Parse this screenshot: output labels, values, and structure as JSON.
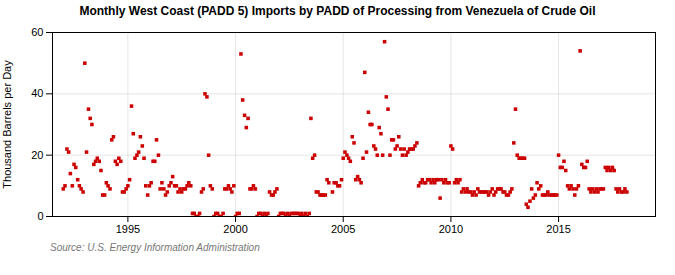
{
  "chart_data": {
    "type": "scatter",
    "title": "Monthly West Coast (PADD 5) Imports by PADD of Processing from Venezuela of Crude Oil",
    "ylabel": "Thousand Barrels per Day",
    "source": "Source: U.S. Energy Information Administration",
    "color": "#cc0000",
    "marker": "square",
    "grid": true,
    "xlim": [
      1991.5,
      2019.5
    ],
    "xticks": [
      1995,
      2000,
      2005,
      2010,
      2015
    ],
    "ylim": [
      0,
      60
    ],
    "yticks": [
      0,
      20,
      40,
      60
    ],
    "x": [
      1992.0,
      1992.08,
      1992.17,
      1992.25,
      1992.33,
      1992.42,
      1992.5,
      1992.58,
      1992.67,
      1992.75,
      1992.83,
      1992.92,
      1993.0,
      1993.08,
      1993.17,
      1993.25,
      1993.33,
      1993.42,
      1993.5,
      1993.58,
      1993.67,
      1993.75,
      1993.83,
      1993.92,
      1994.0,
      1994.08,
      1994.17,
      1994.25,
      1994.33,
      1994.42,
      1994.5,
      1994.58,
      1994.67,
      1994.75,
      1994.83,
      1994.92,
      1995.0,
      1995.08,
      1995.17,
      1995.25,
      1995.33,
      1995.42,
      1995.5,
      1995.58,
      1995.67,
      1995.75,
      1995.83,
      1995.92,
      1996.0,
      1996.08,
      1996.17,
      1996.25,
      1996.33,
      1996.42,
      1996.5,
      1996.58,
      1996.67,
      1996.75,
      1996.83,
      1996.92,
      1997.0,
      1997.08,
      1997.17,
      1997.25,
      1997.33,
      1997.42,
      1997.5,
      1997.58,
      1997.67,
      1997.75,
      1997.83,
      1997.92,
      1998.0,
      1998.08,
      1998.17,
      1998.25,
      1998.33,
      1998.42,
      1998.5,
      1998.58,
      1998.67,
      1998.75,
      1998.83,
      1998.92,
      1999.0,
      1999.08,
      1999.17,
      1999.25,
      1999.33,
      1999.42,
      1999.5,
      1999.58,
      1999.67,
      1999.75,
      1999.83,
      1999.92,
      2000.0,
      2000.08,
      2000.17,
      2000.25,
      2000.33,
      2000.42,
      2000.5,
      2000.58,
      2000.67,
      2000.75,
      2000.83,
      2000.92,
      2001.0,
      2001.08,
      2001.17,
      2001.25,
      2001.33,
      2001.42,
      2001.5,
      2001.58,
      2001.67,
      2001.75,
      2001.83,
      2001.92,
      2002.0,
      2002.08,
      2002.17,
      2002.25,
      2002.33,
      2002.42,
      2002.5,
      2002.58,
      2002.67,
      2002.75,
      2002.83,
      2002.92,
      2003.0,
      2003.08,
      2003.17,
      2003.25,
      2003.33,
      2003.42,
      2003.5,
      2003.58,
      2003.67,
      2003.75,
      2003.83,
      2003.92,
      2004.0,
      2004.08,
      2004.17,
      2004.25,
      2004.33,
      2004.5,
      2004.58,
      2004.67,
      2004.75,
      2004.83,
      2004.92,
      2005.0,
      2005.08,
      2005.17,
      2005.25,
      2005.33,
      2005.42,
      2005.5,
      2005.58,
      2005.67,
      2005.75,
      2005.83,
      2005.92,
      2006.0,
      2006.08,
      2006.17,
      2006.25,
      2006.33,
      2006.42,
      2006.5,
      2006.58,
      2006.67,
      2006.75,
      2006.83,
      2006.92,
      2007.0,
      2007.08,
      2007.17,
      2007.25,
      2007.33,
      2007.42,
      2007.5,
      2007.58,
      2007.67,
      2007.75,
      2007.83,
      2007.92,
      2008.0,
      2008.08,
      2008.17,
      2008.25,
      2008.33,
      2008.42,
      2008.5,
      2008.58,
      2008.67,
      2008.75,
      2008.83,
      2008.92,
      2009.0,
      2009.08,
      2009.17,
      2009.25,
      2009.33,
      2009.42,
      2009.5,
      2009.58,
      2009.67,
      2009.75,
      2009.83,
      2009.92,
      2010.0,
      2010.08,
      2010.17,
      2010.25,
      2010.33,
      2010.42,
      2010.5,
      2010.58,
      2010.67,
      2010.75,
      2010.83,
      2010.92,
      2011.0,
      2011.08,
      2011.17,
      2011.25,
      2011.33,
      2011.42,
      2011.5,
      2011.58,
      2011.67,
      2011.75,
      2011.83,
      2011.92,
      2012.0,
      2012.08,
      2012.17,
      2012.25,
      2012.33,
      2012.42,
      2012.5,
      2012.58,
      2012.67,
      2012.75,
      2012.83,
      2012.92,
      2013.0,
      2013.08,
      2013.17,
      2013.25,
      2013.33,
      2013.42,
      2013.5,
      2013.58,
      2013.67,
      2013.75,
      2013.83,
      2013.92,
      2014.0,
      2014.08,
      2014.17,
      2014.25,
      2014.33,
      2014.42,
      2014.5,
      2014.58,
      2014.67,
      2014.75,
      2014.83,
      2014.92,
      2015.0,
      2015.08,
      2015.17,
      2015.25,
      2015.33,
      2015.42,
      2015.5,
      2015.58,
      2015.67,
      2015.75,
      2015.83,
      2015.92,
      2016.0,
      2016.08,
      2016.17,
      2016.25,
      2016.33,
      2016.42,
      2016.5,
      2016.58,
      2016.67,
      2016.75,
      2016.83,
      2016.92,
      2017.0,
      2017.08,
      2017.17,
      2017.25,
      2017.33,
      2017.42,
      2017.5,
      2017.58,
      2017.67,
      2017.75,
      2017.83,
      2017.92,
      2018.0,
      2018.08,
      2018.17
    ],
    "values": [
      9,
      10,
      22,
      21,
      14,
      10,
      17,
      16,
      12,
      10,
      9,
      8,
      50,
      21,
      35,
      32,
      30,
      17,
      18,
      19,
      18,
      15,
      7,
      7,
      11,
      10,
      9,
      25,
      26,
      18,
      17,
      19,
      18,
      8,
      8,
      9,
      10,
      12,
      36,
      27,
      19,
      20,
      21,
      26,
      23,
      19,
      10,
      7,
      10,
      11,
      18,
      18,
      25,
      20,
      9,
      11,
      9,
      7,
      8,
      10,
      11,
      13,
      10,
      10,
      8,
      9,
      8,
      9,
      9,
      10,
      11,
      10,
      1,
      1,
      0,
      0,
      1,
      8,
      9,
      40,
      39,
      20,
      10,
      9,
      0,
      1,
      1,
      0,
      0,
      1,
      9,
      9,
      10,
      9,
      8,
      10,
      0,
      1,
      1,
      53,
      38,
      33,
      29,
      32,
      9,
      9,
      10,
      9,
      0,
      1,
      1,
      0,
      1,
      0,
      1,
      8,
      7,
      7,
      8,
      9,
      0,
      1,
      1,
      1,
      0,
      1,
      0,
      1,
      1,
      1,
      1,
      1,
      0,
      1,
      0,
      1,
      0,
      1,
      32,
      19,
      20,
      8,
      8,
      7,
      7,
      7,
      7,
      12,
      11,
      8,
      11,
      11,
      10,
      10,
      12,
      19,
      21,
      20,
      19,
      18,
      26,
      24,
      12,
      13,
      12,
      11,
      19,
      47,
      21,
      34,
      30,
      30,
      23,
      22,
      20,
      29,
      27,
      20,
      57,
      39,
      35,
      20,
      25,
      25,
      22,
      23,
      26,
      22,
      20,
      22,
      20,
      21,
      22,
      22,
      22,
      23,
      24,
      10,
      11,
      12,
      11,
      11,
      12,
      12,
      11,
      12,
      11,
      12,
      12,
      6,
      12,
      11,
      12,
      11,
      11,
      23,
      22,
      11,
      12,
      11,
      12,
      8,
      9,
      8,
      9,
      8,
      8,
      7,
      8,
      7,
      9,
      8,
      8,
      8,
      8,
      8,
      7,
      8,
      9,
      7,
      8,
      9,
      9,
      9,
      8,
      8,
      7,
      7,
      8,
      9,
      24,
      35,
      20,
      19,
      19,
      19,
      19,
      4,
      3,
      5,
      9,
      6,
      7,
      11,
      9,
      10,
      7,
      7,
      7,
      8,
      7,
      7,
      7,
      7,
      7,
      20,
      16,
      16,
      18,
      15,
      10,
      9,
      10,
      9,
      7,
      9,
      10,
      54,
      17,
      16,
      16,
      18,
      9,
      8,
      9,
      8,
      9,
      8,
      9,
      9,
      9,
      16,
      15,
      16,
      15,
      16,
      15,
      9,
      8,
      9,
      8,
      8,
      9,
      8
    ]
  }
}
